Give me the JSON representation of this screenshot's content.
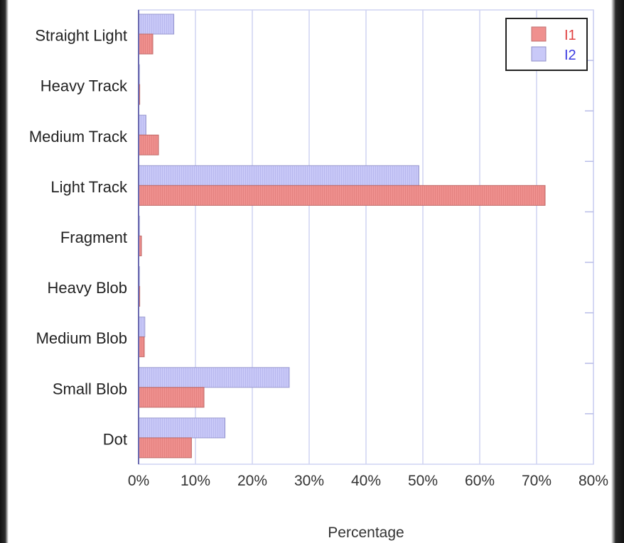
{
  "chart_data": {
    "type": "bar",
    "orientation": "horizontal",
    "categories": [
      "Straight Light",
      "Heavy Track",
      "Medium Track",
      "Light Track",
      "Fragment",
      "Heavy Blob",
      "Medium Blob",
      "Small Blob",
      "Dot"
    ],
    "series": [
      {
        "name": "I1",
        "color": "#ee8e8c",
        "values": [
          2.5,
          0.2,
          3.5,
          71.5,
          0.5,
          0.2,
          1.0,
          11.5,
          9.3
        ]
      },
      {
        "name": "I2",
        "color": "#c8c8f7",
        "values": [
          6.2,
          0.1,
          1.3,
          49.3,
          0.1,
          0.1,
          1.1,
          26.5,
          15.2
        ]
      }
    ],
    "xlabel": "Percentage",
    "xlim": [
      0,
      80
    ],
    "xticks": [
      "0%",
      "10%",
      "20%",
      "30%",
      "40%",
      "50%",
      "60%",
      "70%",
      "80%"
    ],
    "grid": true,
    "legend_position": "top-right"
  }
}
